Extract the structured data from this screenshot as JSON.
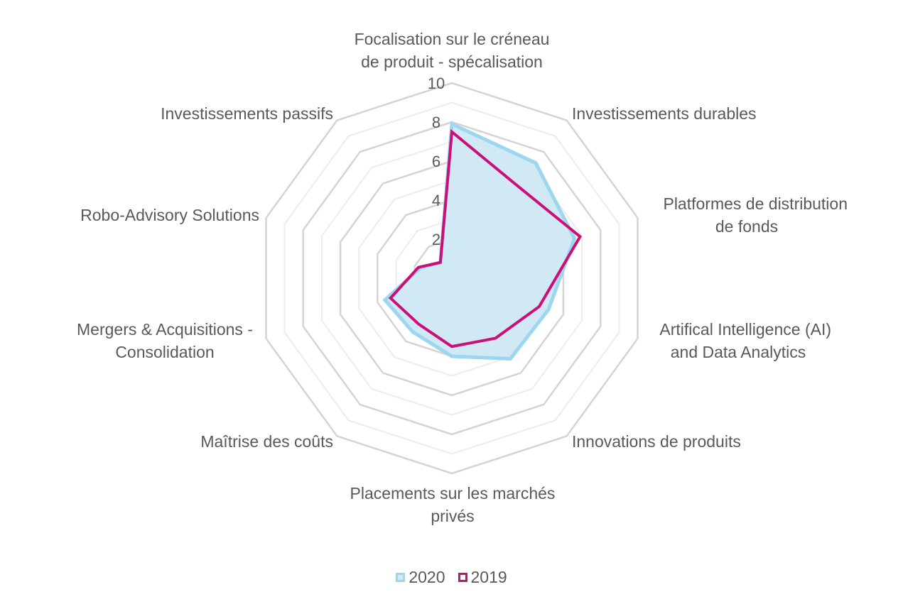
{
  "chart_data": {
    "type": "radar",
    "title": "",
    "axes": [
      [
        "Focalisation sur le créneau",
        "de produit - spécalisation"
      ],
      [
        "Investissements durables"
      ],
      [
        "Platformes de distribution",
        "de fonds"
      ],
      [
        "Artifical Intelligence (AI)",
        "and Data Analytics"
      ],
      [
        "Innovations de produits"
      ],
      [
        "Placements sur les marchés",
        "privés"
      ],
      [
        "Maîtrise des coûts"
      ],
      [
        "Mergers & Acquisitions -",
        "Consolidation"
      ],
      [
        "Robo-Advisory Solutions"
      ],
      [
        "Investissements passifs"
      ]
    ],
    "range": [
      0,
      10
    ],
    "ticks": [
      2,
      4,
      6,
      8,
      10
    ],
    "grid": true,
    "legend_position": "bottom",
    "series": [
      {
        "name": "2020",
        "values": [
          7.9,
          7.3,
          6.6,
          5.2,
          5.1,
          4.0,
          3.4,
          3.6,
          1.7,
          1.0
        ],
        "color": "#9dd6ef",
        "fill": "#d0e9f5"
      },
      {
        "name": "2019",
        "values": [
          7.5,
          5.8,
          6.9,
          4.7,
          3.8,
          3.5,
          2.9,
          3.3,
          1.8,
          1.0
        ],
        "color": "#cc0f77"
      }
    ]
  }
}
